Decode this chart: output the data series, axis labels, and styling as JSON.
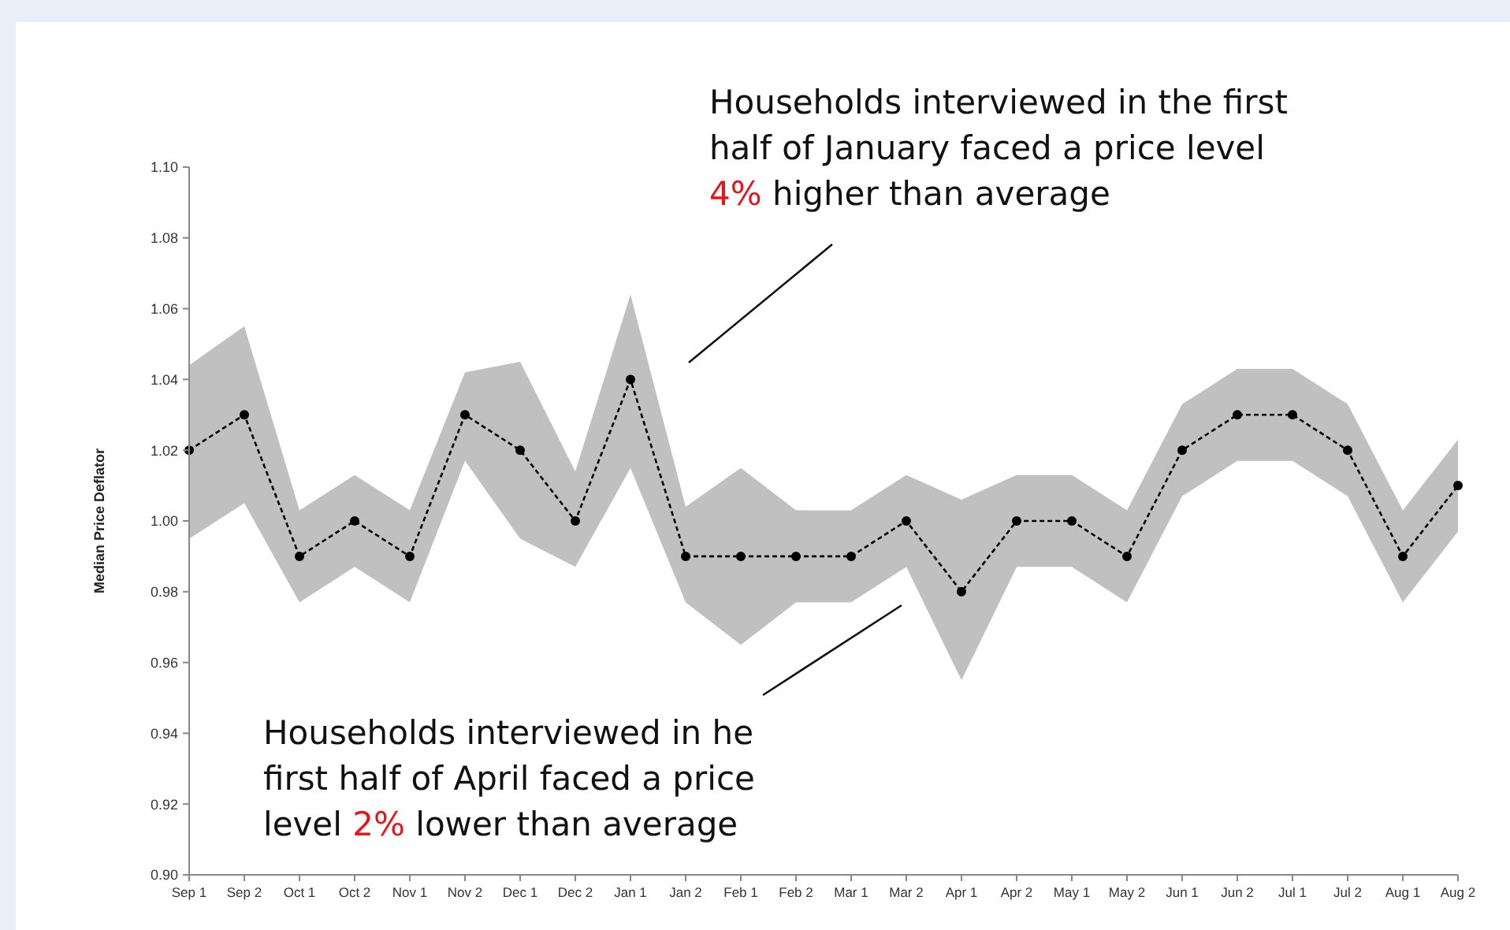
{
  "chart_data": {
    "type": "line",
    "ylabel": "Median Price Deflator",
    "categories": [
      "Sep 1",
      "Sep 2",
      "Oct 1",
      "Oct 2",
      "Nov 1",
      "Nov 2",
      "Dec 1",
      "Dec 2",
      "Jan 1",
      "Jan 2",
      "Feb 1",
      "Feb 2",
      "Mar 1",
      "Mar 2",
      "Apr 1",
      "Apr 2",
      "May 1",
      "May 2",
      "Jun 1",
      "Jun 2",
      "Jul 1",
      "Jul 2",
      "Aug 1",
      "Aug 2"
    ],
    "series": [
      {
        "color": "#000000",
        "values": [
          1.02,
          1.03,
          0.99,
          1.0,
          0.99,
          1.03,
          1.02,
          1.0,
          1.04,
          0.99,
          0.99,
          0.99,
          0.99,
          1.0,
          0.98,
          1.0,
          1.0,
          0.99,
          1.02,
          1.03,
          1.03,
          1.02,
          0.99,
          1.01
        ],
        "upper": [
          1.044,
          1.055,
          1.003,
          1.013,
          1.003,
          1.042,
          1.045,
          1.014,
          1.064,
          1.004,
          1.015,
          1.003,
          1.003,
          1.013,
          1.006,
          1.013,
          1.013,
          1.003,
          1.033,
          1.043,
          1.043,
          1.033,
          1.003,
          1.023
        ],
        "lower": [
          0.995,
          1.005,
          0.977,
          0.987,
          0.977,
          1.017,
          0.995,
          0.987,
          1.015,
          0.977,
          0.965,
          0.977,
          0.977,
          0.987,
          0.955,
          0.987,
          0.987,
          0.977,
          1.007,
          1.017,
          1.017,
          1.007,
          0.977,
          0.997
        ]
      }
    ],
    "ylim": [
      0.9,
      1.1
    ],
    "yticks": [
      {
        "value": 0.9,
        "label": "0.90"
      },
      0.92,
      0.94,
      0.96,
      0.98,
      {
        "value": 1.0,
        "label": "1.00"
      },
      1.02,
      1.04,
      1.06,
      1.08,
      {
        "value": 1.1,
        "label": "1.10"
      }
    ],
    "marker": "circle",
    "line_style": "dashed",
    "grid": false,
    "annotations": [
      "Households interviewed in the first half of January faced a price level 4% higher than average",
      "Households interviewed in he first half of April faced a price level 2% lower than average"
    ]
  }
}
